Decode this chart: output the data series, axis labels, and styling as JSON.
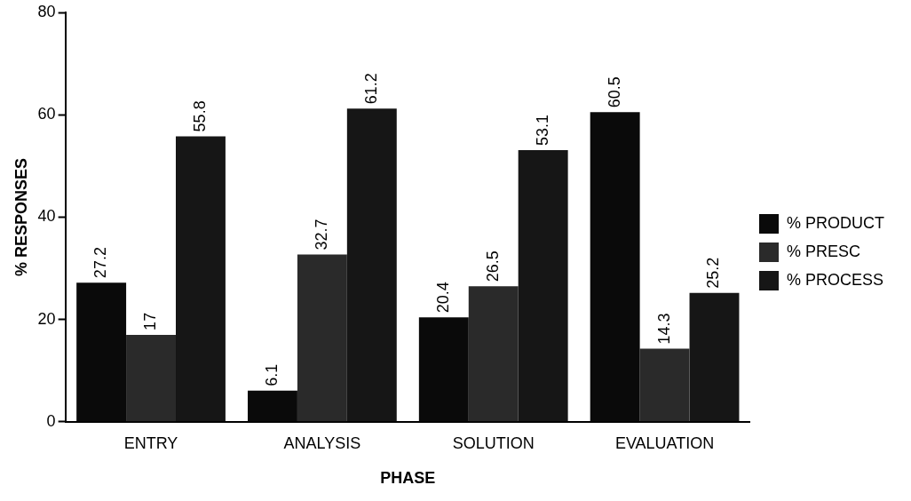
{
  "chart_data": {
    "type": "bar",
    "xlabel": "PHASE",
    "ylabel": "% RESPONSES",
    "categories": [
      "ENTRY",
      "ANALYSIS",
      "SOLUTION",
      "EVALUATION"
    ],
    "series": [
      {
        "name": "% PRODUCT",
        "color": "#0a0a0a",
        "values": [
          27.2,
          6.1,
          20.4,
          60.5
        ]
      },
      {
        "name": "% PRESC",
        "color": "#2a2a2a",
        "values": [
          17,
          32.7,
          26.5,
          14.3
        ]
      },
      {
        "name": "% PROCESS",
        "color": "#161616",
        "values": [
          55.8,
          61.2,
          53.1,
          25.2
        ]
      }
    ],
    "ylim": [
      0,
      80
    ],
    "yticks": [
      0,
      20,
      40,
      60,
      80
    ],
    "grid": false,
    "legend": "right",
    "data_labels": true
  }
}
